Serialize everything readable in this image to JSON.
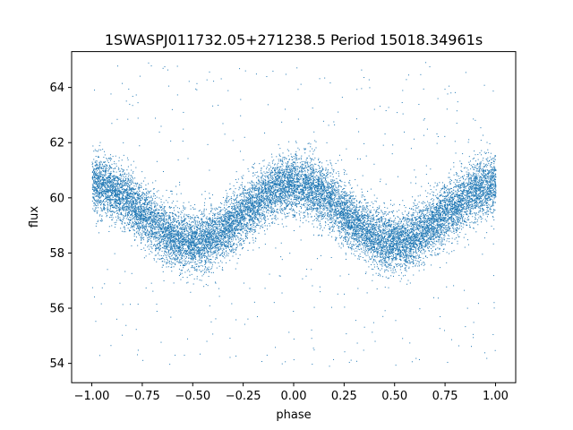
{
  "chart_data": {
    "type": "scatter",
    "title": "1SWASPJ011732.05+271238.5 Period 15018.34961s",
    "xlabel": "phase",
    "ylabel": "flux",
    "xlim": [
      -1.1,
      1.1
    ],
    "ylim": [
      53.3,
      65.3
    ],
    "x_ticks": [
      -1.0,
      -0.75,
      -0.5,
      -0.25,
      0.0,
      0.25,
      0.5,
      0.75,
      1.0
    ],
    "x_tick_labels": [
      "−1.00",
      "−0.75",
      "−0.50",
      "−0.25",
      "0.00",
      "0.25",
      "0.50",
      "0.75",
      "1.00"
    ],
    "y_ticks": [
      54,
      56,
      58,
      60,
      62,
      64
    ],
    "y_tick_labels": [
      "54",
      "56",
      "58",
      "60",
      "62",
      "64"
    ],
    "grid": false,
    "marker_color": "#1f77b4",
    "series": [
      {
        "model": "sinusoid: mean 59.45, amplitude 1.05, max near phase 0 and ±1, min near phase ±0.5, vertical scatter ±1",
        "x": [
          -1.0,
          -0.875,
          -0.75,
          -0.625,
          -0.5,
          -0.375,
          -0.25,
          -0.125,
          0.0,
          0.125,
          0.25,
          0.375,
          0.5,
          0.625,
          0.75,
          0.875,
          1.0
        ],
        "y": [
          60.5,
          60.2,
          59.45,
          58.7,
          58.4,
          58.7,
          59.45,
          60.2,
          60.5,
          60.2,
          59.45,
          58.7,
          58.4,
          58.7,
          59.45,
          60.2,
          60.5
        ]
      }
    ]
  }
}
